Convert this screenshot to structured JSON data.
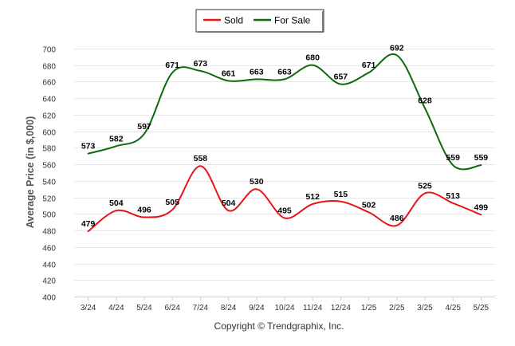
{
  "chart_data": {
    "type": "line",
    "title": "",
    "xlabel": "",
    "ylabel": "Average Price (in $,000)",
    "categories": [
      "3/24",
      "4/24",
      "5/24",
      "6/24",
      "7/24",
      "8/24",
      "9/24",
      "10/24",
      "11/24",
      "12/24",
      "1/25",
      "2/25",
      "3/25",
      "4/25",
      "5/25"
    ],
    "yticks": [
      400,
      420,
      440,
      460,
      480,
      500,
      520,
      540,
      560,
      580,
      600,
      620,
      640,
      660,
      680,
      700
    ],
    "ylim": [
      400,
      700
    ],
    "grid": true,
    "legend_position": "top-center",
    "series": [
      {
        "name": "Sold",
        "color": "#e8131b",
        "values": [
          479,
          504,
          496,
          505,
          558,
          504,
          530,
          495,
          512,
          515,
          502,
          486,
          525,
          513,
          499
        ]
      },
      {
        "name": "For Sale",
        "color": "#0e6a0e",
        "values": [
          573,
          582,
          597,
          671,
          673,
          661,
          663,
          663,
          680,
          657,
          671,
          692,
          628,
          559,
          559
        ]
      }
    ],
    "footer": "Copyright © Trendgraphix, Inc."
  }
}
